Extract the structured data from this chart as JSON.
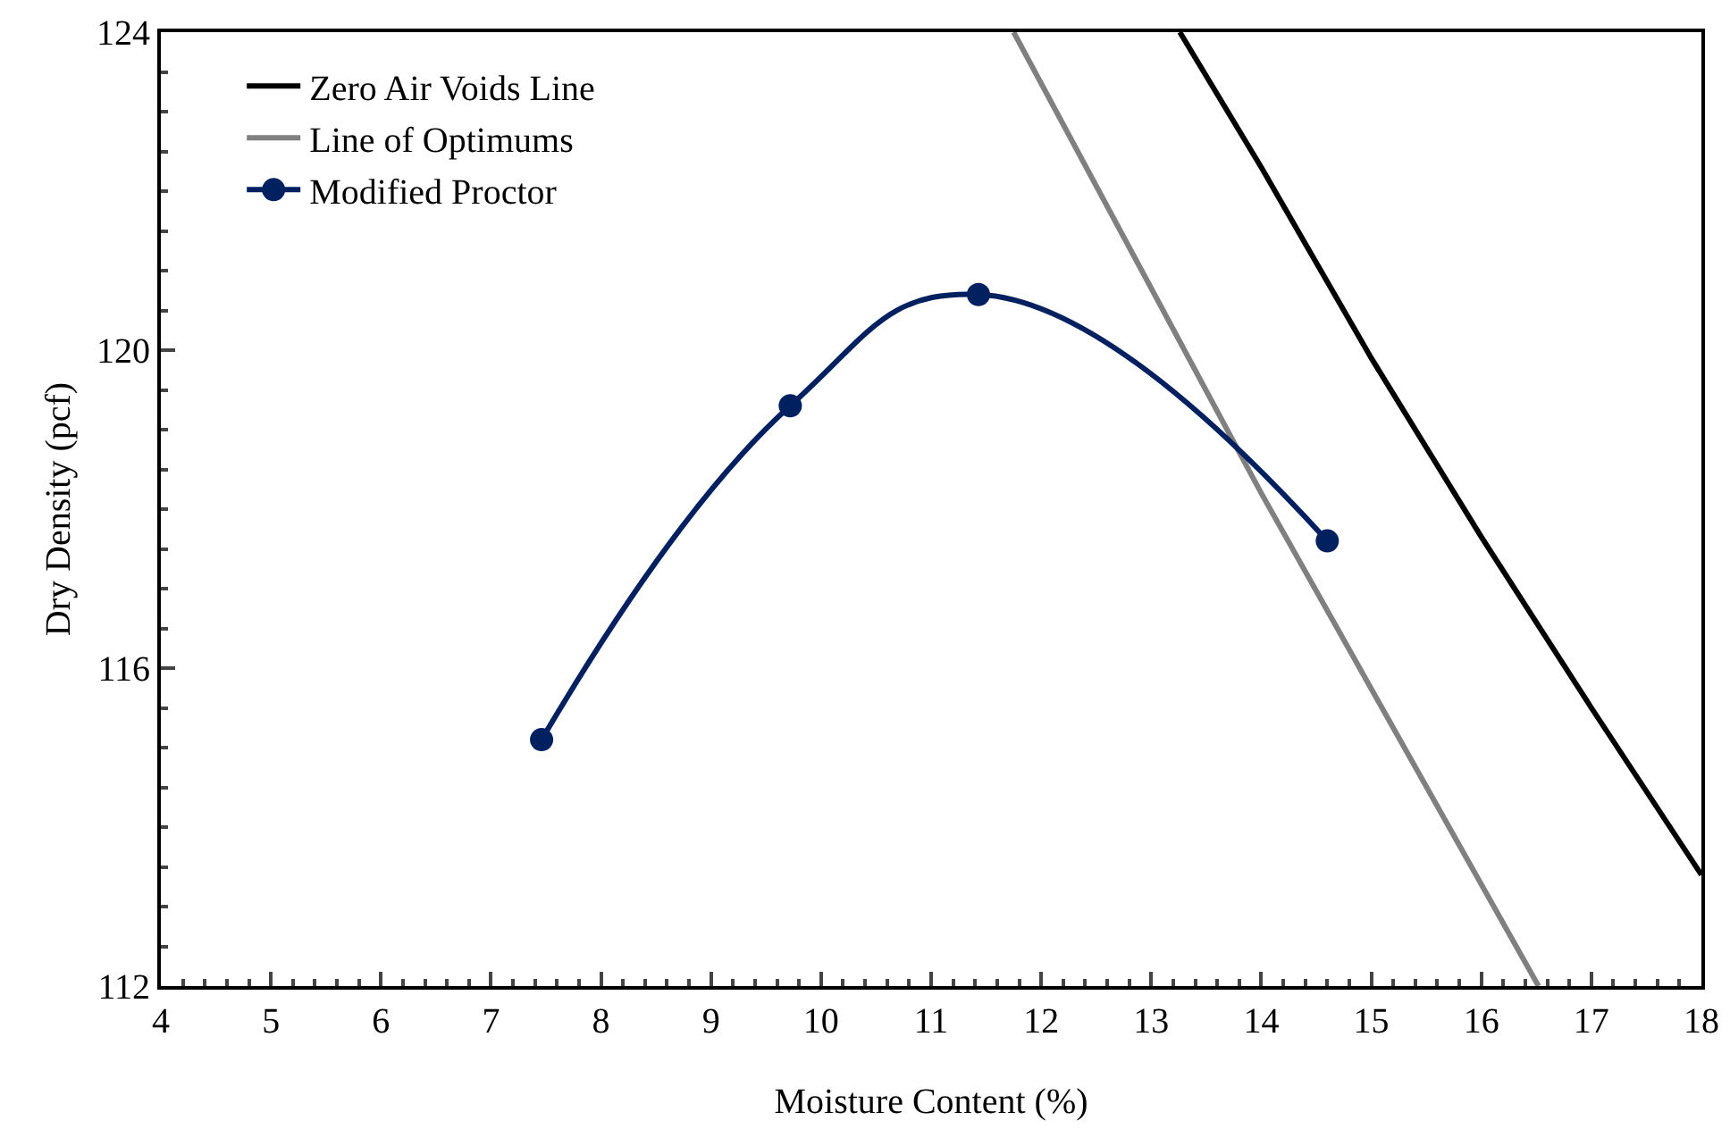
{
  "chart_data": {
    "type": "line",
    "xlabel": "Moisture Content (%)",
    "ylabel": "Dry Density (pcf)",
    "xlim": [
      4,
      18
    ],
    "xticks": [
      4,
      5,
      6,
      7,
      8,
      9,
      10,
      11,
      12,
      13,
      14,
      15,
      16,
      17,
      18
    ],
    "ylim": [
      112,
      124
    ],
    "yticks": [
      112,
      116,
      120,
      124
    ],
    "grid": false,
    "legend": "top left",
    "line_style": "solid",
    "series": [
      {
        "name": "Zero Air Voids Line",
        "color": "#000000",
        "marker": "none",
        "x": [
          13.26,
          14,
          15,
          16,
          17,
          18
        ],
        "values": [
          124,
          122.3,
          119.9,
          117.65,
          115.5,
          113.4
        ]
      },
      {
        "name": "Line of Optimums",
        "color": "#808080",
        "marker": "none",
        "x": [
          11.75,
          14,
          16.52
        ],
        "values": [
          124,
          118.2,
          112
        ]
      },
      {
        "name": "Modified Proctor",
        "color": "#002060",
        "marker": "circle",
        "x": [
          7.46,
          9.72,
          11.43,
          14.6
        ],
        "values": [
          115.1,
          119.3,
          120.7,
          117.6
        ]
      }
    ]
  }
}
